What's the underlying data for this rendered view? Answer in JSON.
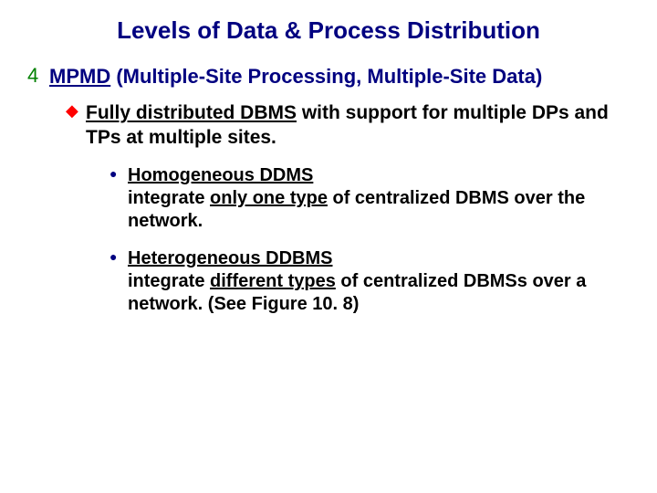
{
  "colors": {
    "title_color": "#000080",
    "l1_text_color": "#000080",
    "l1_bullet_color": "#008000",
    "l2_text_color": "#000000",
    "l2_bullet_color": "#ff0000",
    "l3_text_color": "#000000",
    "l3_bullet_color": "#000080",
    "background": "#ffffff"
  },
  "bullets": {
    "l1_glyph": "4",
    "l2_glyph": "◆",
    "l3_glyph": "●"
  },
  "title": "Levels of Data & Process Distribution",
  "l1": {
    "underlined": "MPMD",
    "rest": " (Multiple-Site Processing, Multiple-Site Data)"
  },
  "l2": {
    "underlined": "Fully distributed DBMS",
    "rest": " with support for multiple DPs and TPs at multiple sites."
  },
  "l3a": {
    "underlined": "Homogeneous DDMS",
    "line2a": "integrate ",
    "line2u": "only one type",
    "line2b": " of centralized DBMS over the network."
  },
  "l3b": {
    "underlined": "Heterogeneous DDBMS",
    "line2a": "integrate ",
    "line2u": "different types",
    "line2b": " of centralized DBMSs over a network. (See Figure 10. 8)"
  }
}
